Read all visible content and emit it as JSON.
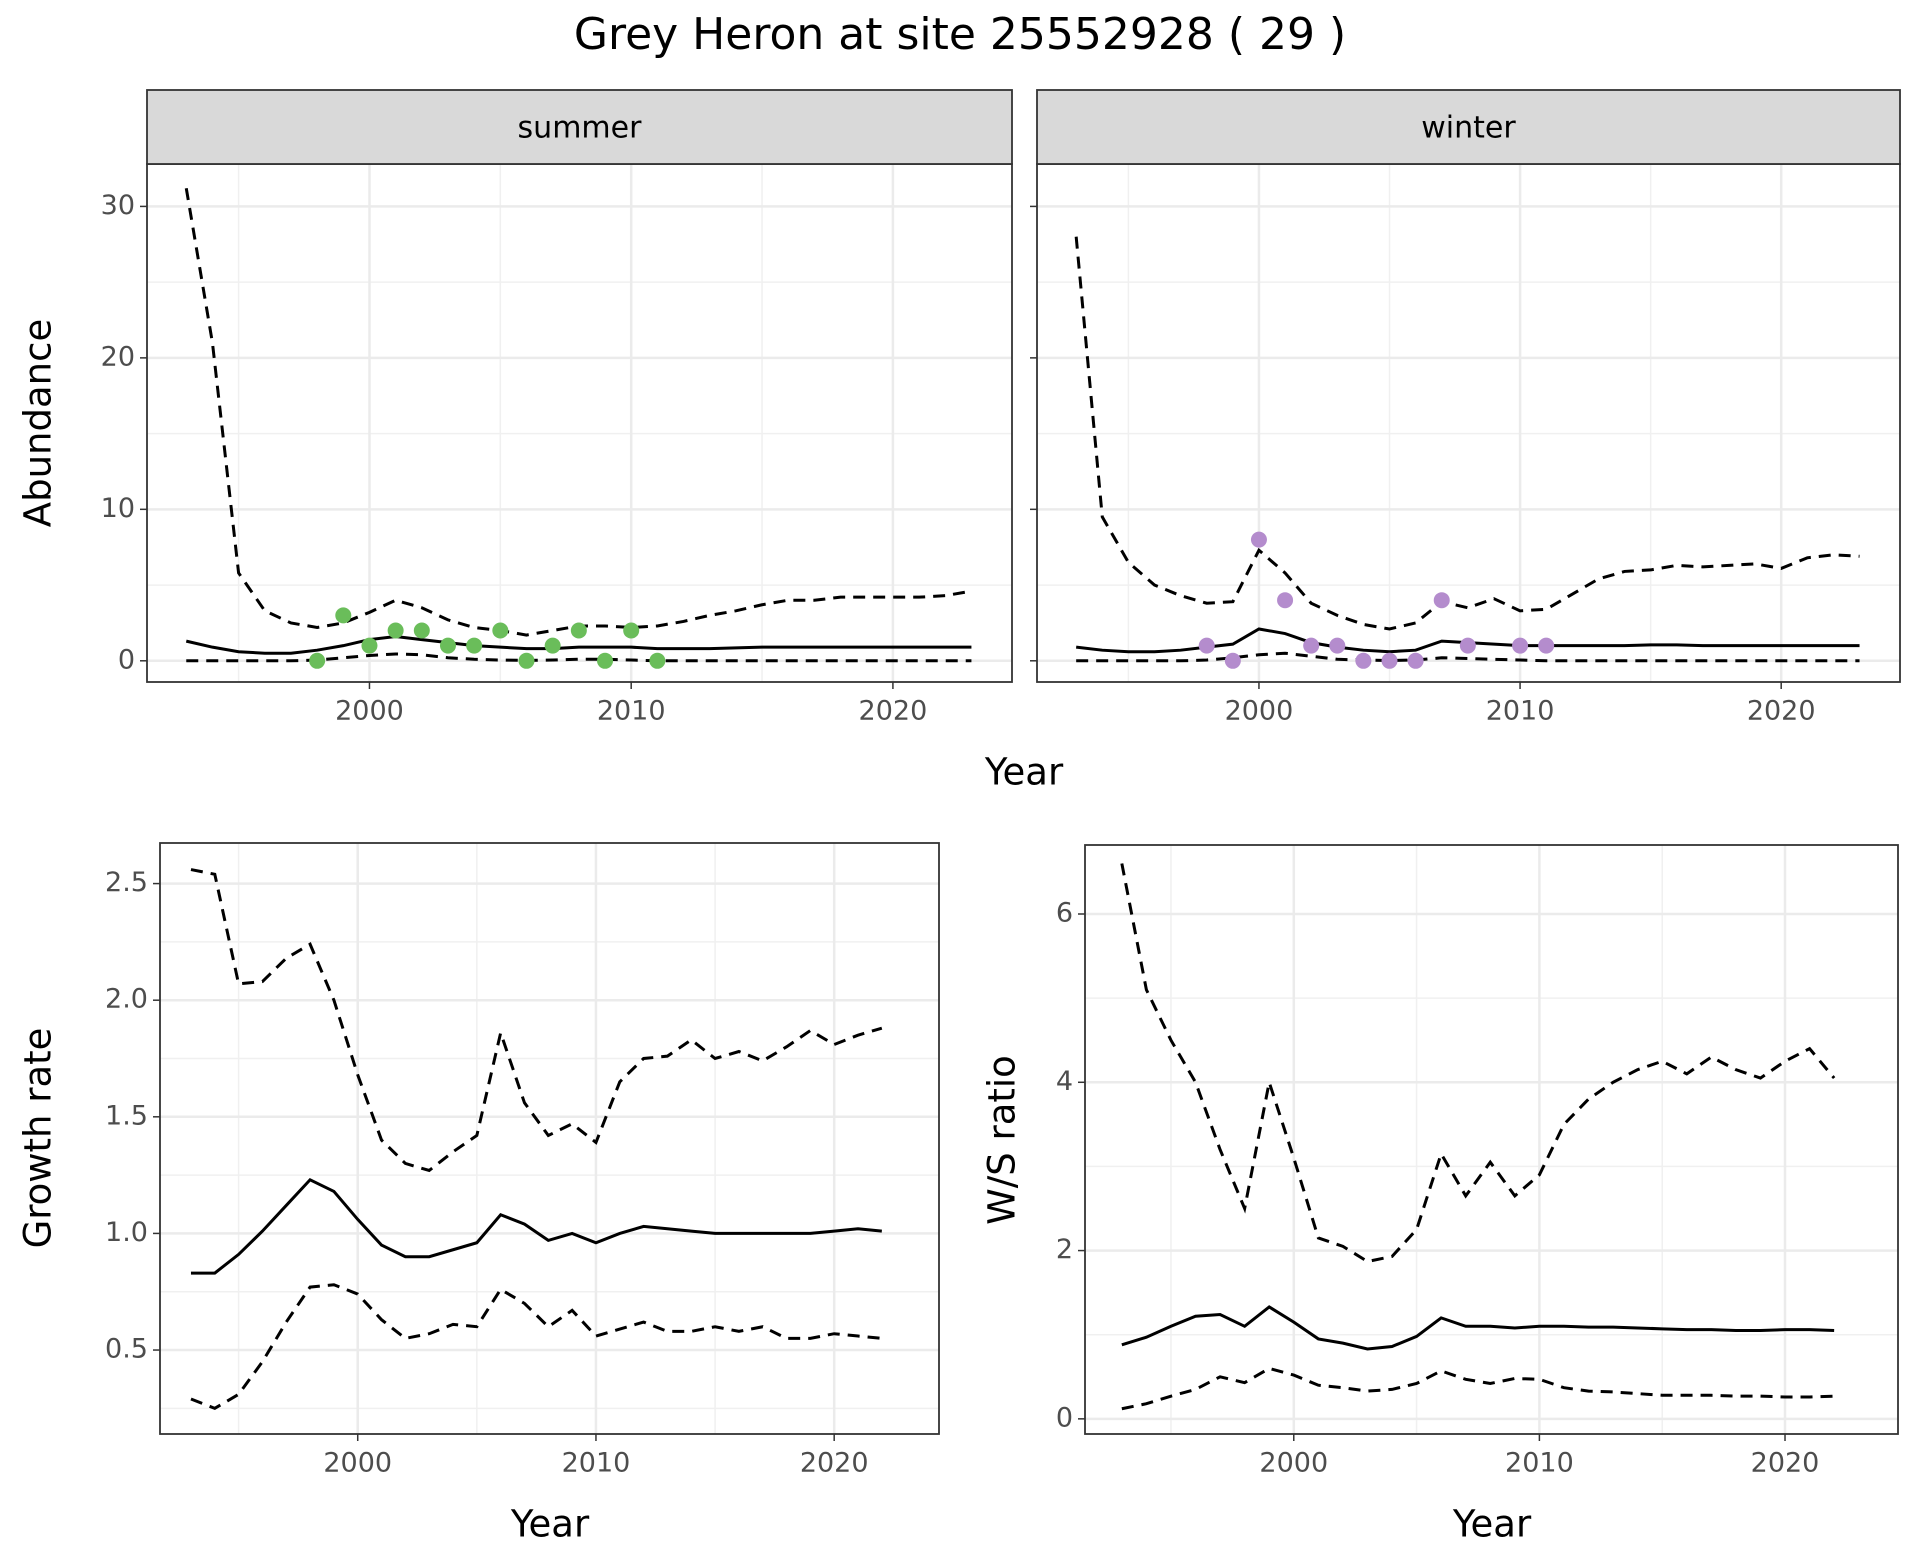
{
  "title": "Grey Heron at site 25552928 ( 29 )",
  "chart_data": [
    {
      "type": "line",
      "title": "summer",
      "xlabel": "Year",
      "ylabel": "Abundance",
      "x": [
        1993,
        1994,
        1995,
        1996,
        1997,
        1998,
        1999,
        2000,
        2001,
        2002,
        2003,
        2004,
        2005,
        2006,
        2007,
        2008,
        2009,
        2010,
        2011,
        2012,
        2013,
        2014,
        2015,
        2016,
        2017,
        2018,
        2019,
        2020,
        2021,
        2022,
        2023
      ],
      "xlim": [
        1991.5,
        2024.55
      ],
      "xticks": [
        2000,
        2010,
        2020
      ],
      "xminor": [
        1995,
        2005,
        2015
      ],
      "ylim": [
        -1.4,
        32.8
      ],
      "yticks": [
        0,
        10,
        20,
        30
      ],
      "yminor": [
        5,
        15,
        25
      ],
      "grid": true,
      "show_ytick_labels": true,
      "series": [
        {
          "style": "dashed",
          "color": "#000000",
          "values": [
            31.2,
            21,
            5.8,
            3.3,
            2.5,
            2.2,
            2.5,
            3.2,
            4,
            3.5,
            2.7,
            2.2,
            2.0,
            1.7,
            2.0,
            2.3,
            2.3,
            2.2,
            2.3,
            2.6,
            3.0,
            3.3,
            3.7,
            4.0,
            4.0,
            4.2,
            4.2,
            4.2,
            4.2,
            4.3,
            4.6
          ]
        },
        {
          "style": "solid",
          "color": "#000000",
          "values": [
            1.3,
            0.9,
            0.6,
            0.5,
            0.5,
            0.7,
            1.0,
            1.4,
            1.6,
            1.4,
            1.2,
            1.0,
            0.9,
            0.8,
            0.8,
            0.9,
            0.9,
            0.9,
            0.8,
            0.8,
            0.8,
            0.85,
            0.9,
            0.9,
            0.9,
            0.9,
            0.9,
            0.9,
            0.9,
            0.9,
            0.9
          ]
        },
        {
          "style": "dashed",
          "color": "#000000",
          "values": [
            0,
            0,
            0,
            0,
            0,
            0.05,
            0.2,
            0.35,
            0.45,
            0.4,
            0.2,
            0.1,
            0.05,
            0.03,
            0.05,
            0.1,
            0.1,
            0.05,
            0,
            0,
            0,
            0,
            0,
            0,
            0,
            0,
            0,
            0,
            0,
            0,
            0
          ]
        },
        {
          "style": "points",
          "color": "#6abd5a",
          "x": [
            1998,
            1999,
            2000,
            2001,
            2002,
            2003,
            2004,
            2005,
            2006,
            2007,
            2008,
            2009,
            2010,
            2011
          ],
          "values": [
            0,
            3,
            1,
            2,
            2,
            1,
            1,
            2,
            0,
            1,
            2,
            0,
            2,
            0
          ]
        }
      ]
    },
    {
      "type": "line",
      "title": "winter",
      "x": [
        1993,
        1994,
        1995,
        1996,
        1997,
        1998,
        1999,
        2000,
        2001,
        2002,
        2003,
        2004,
        2005,
        2006,
        2007,
        2008,
        2009,
        2010,
        2011,
        2012,
        2013,
        2014,
        2015,
        2016,
        2017,
        2018,
        2019,
        2020,
        2021,
        2022,
        2023
      ],
      "xlim": [
        1991.5,
        2024.55
      ],
      "xticks": [
        2000,
        2010,
        2020
      ],
      "xminor": [
        1995,
        2005,
        2015
      ],
      "ylim": [
        -1.4,
        32.8
      ],
      "yticks": [
        0,
        10,
        20,
        30
      ],
      "yminor": [
        5,
        15,
        25
      ],
      "grid": true,
      "show_ytick_labels": false,
      "series": [
        {
          "style": "dashed",
          "color": "#000000",
          "values": [
            28,
            9.5,
            6.5,
            5,
            4.3,
            3.8,
            3.9,
            7.3,
            5.8,
            3.8,
            3,
            2.4,
            2.1,
            2.5,
            3.9,
            3.5,
            4.1,
            3.3,
            3.4,
            4.4,
            5.4,
            5.9,
            6.0,
            6.3,
            6.2,
            6.3,
            6.4,
            6.1,
            6.8,
            7.0,
            6.9
          ]
        },
        {
          "style": "solid",
          "color": "#000000",
          "values": [
            0.9,
            0.7,
            0.6,
            0.6,
            0.7,
            0.9,
            1.1,
            2.1,
            1.8,
            1.2,
            0.9,
            0.7,
            0.6,
            0.7,
            1.3,
            1.2,
            1.1,
            1.0,
            1.0,
            1.0,
            1.0,
            1.0,
            1.05,
            1.05,
            1.0,
            1.0,
            1.0,
            1.0,
            1.0,
            1.0,
            1.0
          ]
        },
        {
          "style": "dashed",
          "color": "#000000",
          "values": [
            0,
            0,
            0,
            0,
            0,
            0.05,
            0.2,
            0.4,
            0.5,
            0.3,
            0.1,
            0.05,
            0.02,
            0.05,
            0.2,
            0.15,
            0.1,
            0.05,
            0,
            0,
            0,
            0,
            0,
            0,
            0,
            0,
            0,
            0,
            0,
            0,
            0
          ]
        },
        {
          "style": "points",
          "color": "#b48ccd",
          "x": [
            1998,
            1999,
            2000,
            2001,
            2002,
            2003,
            2004,
            2005,
            2006,
            2007,
            2008,
            2010,
            2011
          ],
          "values": [
            1,
            0,
            8,
            4,
            1,
            1,
            0,
            0,
            0,
            4,
            1,
            1,
            1
          ]
        }
      ]
    },
    {
      "type": "line",
      "xlabel": "Year",
      "ylabel": "Growth rate",
      "x": [
        1993,
        1994,
        1995,
        1996,
        1997,
        1998,
        1999,
        2000,
        2001,
        2002,
        2003,
        2004,
        2005,
        2006,
        2007,
        2008,
        2009,
        2010,
        2011,
        2012,
        2013,
        2014,
        2015,
        2016,
        2017,
        2018,
        2019,
        2020,
        2021,
        2022
      ],
      "xlim": [
        1991.7,
        2024.4
      ],
      "xticks": [
        2000,
        2010,
        2020
      ],
      "xminor": [
        1995,
        2005,
        2015
      ],
      "ylim": [
        0.14,
        2.674
      ],
      "yticks": [
        0.5,
        {
          "value": 1,
          "label": "1.0"
        },
        1.5,
        {
          "value": 2,
          "label": "2.0"
        },
        2.5
      ],
      "yminor": [
        0.25,
        0.75,
        1.25,
        1.75,
        2.25
      ],
      "grid": true,
      "show_ytick_labels": true,
      "series": [
        {
          "style": "dashed",
          "color": "#000000",
          "values": [
            2.56,
            2.54,
            2.07,
            2.08,
            2.18,
            2.24,
            2.0,
            1.68,
            1.4,
            1.3,
            1.27,
            1.35,
            1.42,
            1.86,
            1.56,
            1.42,
            1.47,
            1.39,
            1.65,
            1.75,
            1.76,
            1.83,
            1.75,
            1.78,
            1.74,
            1.8,
            1.87,
            1.81,
            1.85,
            1.88
          ]
        },
        {
          "style": "solid",
          "color": "#000000",
          "values": [
            0.83,
            0.83,
            0.91,
            1.01,
            1.12,
            1.23,
            1.18,
            1.06,
            0.95,
            0.9,
            0.9,
            0.93,
            0.96,
            1.08,
            1.04,
            0.97,
            1.0,
            0.96,
            1.0,
            1.03,
            1.02,
            1.01,
            1.0,
            1.0,
            1.0,
            1.0,
            1.0,
            1.01,
            1.02,
            1.01
          ]
        },
        {
          "style": "dashed",
          "color": "#000000",
          "values": [
            0.29,
            0.25,
            0.31,
            0.45,
            0.62,
            0.77,
            0.78,
            0.74,
            0.63,
            0.55,
            0.57,
            0.61,
            0.6,
            0.76,
            0.7,
            0.6,
            0.67,
            0.56,
            0.59,
            0.62,
            0.58,
            0.58,
            0.6,
            0.58,
            0.6,
            0.55,
            0.55,
            0.57,
            0.56,
            0.55
          ]
        }
      ]
    },
    {
      "type": "line",
      "xlabel": "Year",
      "ylabel": "W/S ratio",
      "x": [
        1993,
        1994,
        1995,
        1996,
        1997,
        1998,
        1999,
        2000,
        2001,
        2002,
        2003,
        2004,
        2005,
        2006,
        2007,
        2008,
        2009,
        2010,
        2011,
        2012,
        2013,
        2014,
        2015,
        2016,
        2017,
        2018,
        2019,
        2020,
        2021,
        2022
      ],
      "xlim": [
        1991.5,
        2024.6
      ],
      "xticks": [
        2000,
        2010,
        2020
      ],
      "xminor": [
        1995,
        2005,
        2015
      ],
      "ylim": [
        -0.18,
        6.82
      ],
      "yticks": [
        0,
        2,
        4,
        6
      ],
      "yminor": [
        1,
        3,
        5
      ],
      "grid": true,
      "show_ytick_labels": true,
      "series": [
        {
          "style": "dashed",
          "color": "#000000",
          "values": [
            6.6,
            5.1,
            4.5,
            4.0,
            3.2,
            2.5,
            4.0,
            3.1,
            2.15,
            2.05,
            1.87,
            1.93,
            2.25,
            3.15,
            2.65,
            3.05,
            2.65,
            2.9,
            3.5,
            3.8,
            4.0,
            4.15,
            4.25,
            4.1,
            4.3,
            4.15,
            4.05,
            4.25,
            4.4,
            4.05
          ]
        },
        {
          "style": "solid",
          "color": "#000000",
          "values": [
            0.88,
            0.97,
            1.1,
            1.22,
            1.24,
            1.1,
            1.33,
            1.15,
            0.95,
            0.9,
            0.83,
            0.86,
            0.98,
            1.2,
            1.1,
            1.1,
            1.08,
            1.1,
            1.1,
            1.09,
            1.09,
            1.08,
            1.07,
            1.06,
            1.06,
            1.05,
            1.05,
            1.06,
            1.06,
            1.05
          ]
        },
        {
          "style": "dashed",
          "color": "#000000",
          "values": [
            0.12,
            0.18,
            0.27,
            0.35,
            0.5,
            0.43,
            0.6,
            0.52,
            0.4,
            0.37,
            0.33,
            0.35,
            0.42,
            0.57,
            0.47,
            0.42,
            0.48,
            0.47,
            0.37,
            0.33,
            0.32,
            0.3,
            0.28,
            0.28,
            0.28,
            0.27,
            0.27,
            0.26,
            0.26,
            0.27
          ]
        }
      ]
    }
  ]
}
